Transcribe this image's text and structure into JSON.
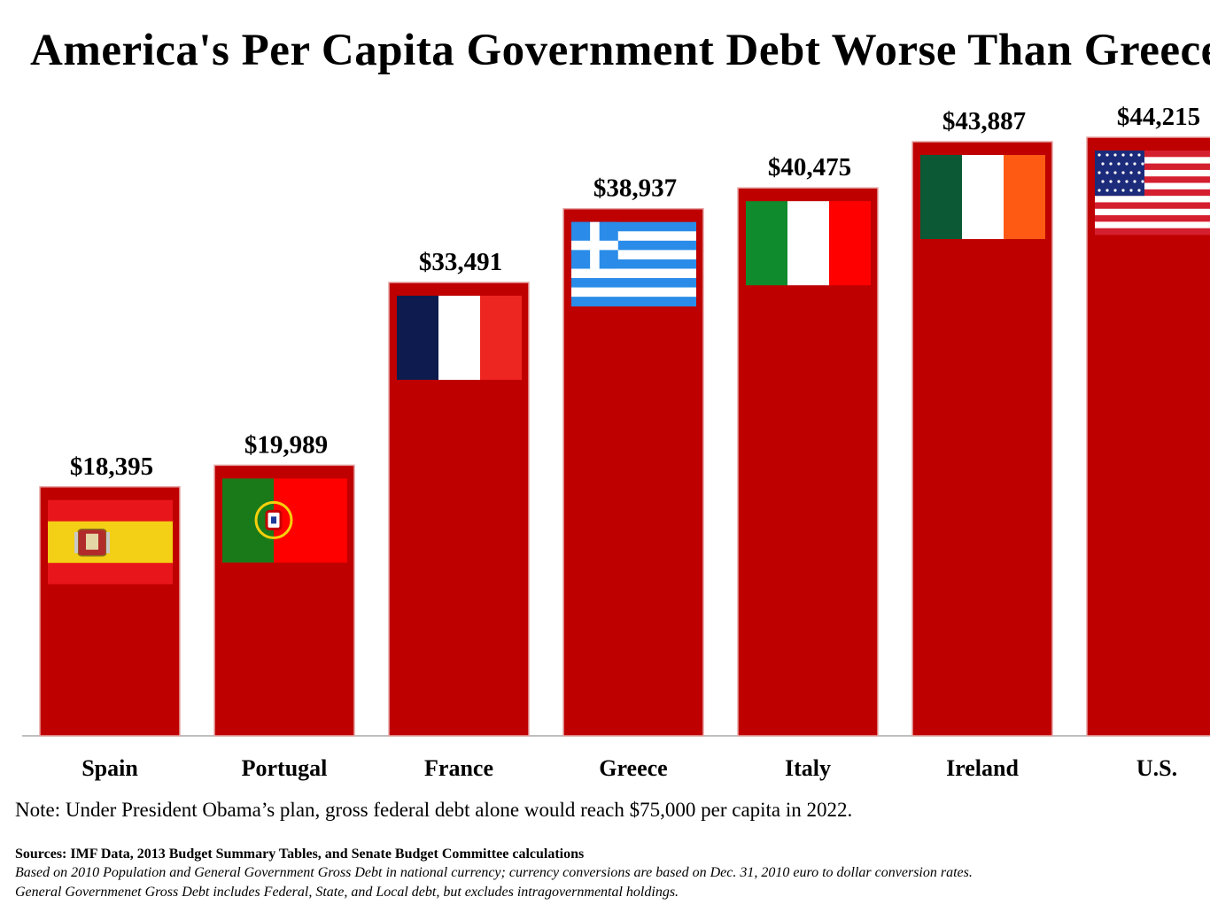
{
  "title": "America's Per Capita Government Debt Worse Than Greece",
  "chart_data": {
    "type": "bar",
    "categories": [
      "Spain",
      "Portugal",
      "France",
      "Greece",
      "Italy",
      "Ireland",
      "U.S."
    ],
    "values": [
      18395,
      19989,
      33491,
      38937,
      40475,
      43887,
      44215
    ],
    "value_labels": [
      "$18,395",
      "$19,989",
      "$33,491",
      "$38,937",
      "$40,475",
      "$43,887",
      "$44,215"
    ],
    "flags": [
      "spain-flag-icon",
      "portugal-flag-icon",
      "france-flag-icon",
      "greece-flag-icon",
      "italy-flag-icon",
      "ireland-flag-icon",
      "us-flag-icon"
    ],
    "bar_color": "#bf0000",
    "grid": false
  },
  "note": "Note: Under President Obama’s plan, gross federal debt alone would reach $75,000 per capita in 2022.",
  "sources": "Sources: IMF Data, 2013 Budget Summary Tables, and Senate Budget Committee calculations",
  "details": [
    "Based on 2010 Population and General Government Gross Debt in national currency; currency conversions are based on Dec. 31, 2010 euro to dollar conversion rates.",
    "General Governmenet Gross Debt includes Federal, State, and Local debt, but excludes intragovernmental holdings."
  ]
}
